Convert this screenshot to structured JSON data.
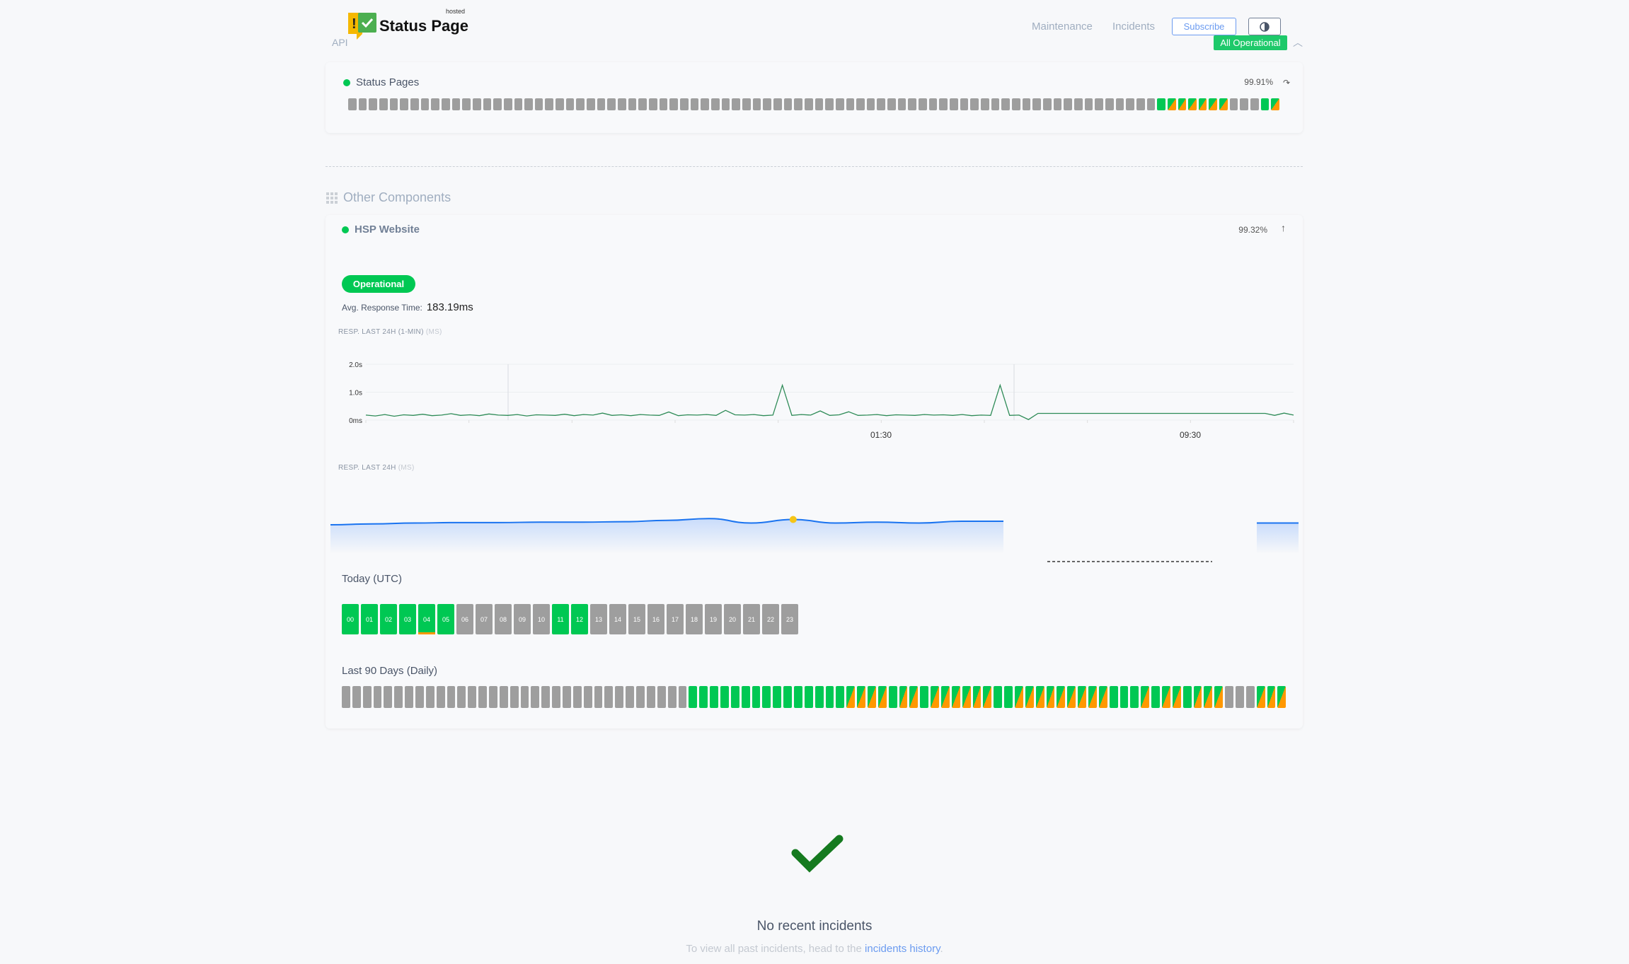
{
  "header": {
    "logo_text": "Status Page",
    "logo_hosted": "hosted",
    "api_label": "API",
    "nav": [
      "Maintenance",
      "Incidents"
    ],
    "subscribe": "Subscribe",
    "theme_icon": "half-circle-contrast-icon",
    "overall_status": "All Operational",
    "collapse_icon": "chevron-up-icon"
  },
  "status_pages": {
    "name": "Status Pages",
    "uptime": "99.91%",
    "icon": "redo-arrow-icon",
    "days": [
      "none",
      "none",
      "none",
      "none",
      "none",
      "none",
      "none",
      "none",
      "none",
      "none",
      "none",
      "none",
      "none",
      "none",
      "none",
      "none",
      "none",
      "none",
      "none",
      "none",
      "none",
      "none",
      "none",
      "none",
      "none",
      "none",
      "none",
      "none",
      "none",
      "none",
      "none",
      "none",
      "none",
      "none",
      "none",
      "none",
      "none",
      "none",
      "none",
      "none",
      "none",
      "none",
      "none",
      "none",
      "none",
      "none",
      "none",
      "none",
      "none",
      "none",
      "none",
      "none",
      "none",
      "none",
      "none",
      "none",
      "none",
      "none",
      "none",
      "none",
      "none",
      "none",
      "none",
      "none",
      "none",
      "none",
      "none",
      "none",
      "none",
      "none",
      "none",
      "none",
      "none",
      "none",
      "none",
      "none",
      "none",
      "none",
      "up",
      "partial",
      "partial",
      "partial",
      "partial",
      "partial",
      "partial",
      "none",
      "none",
      "none",
      "up",
      "partial"
    ]
  },
  "section": {
    "title": "Other Components",
    "icon": "grid-icon"
  },
  "component": {
    "name": "HSP Website",
    "uptime": "99.32%",
    "icon": "arrow-up-icon",
    "status": "Operational",
    "avg_label": "Avg. Response Time:",
    "avg_value": "183.19ms",
    "chart1_label": "RESP. LAST 24H (1-MIN)",
    "chart1_unit": "(MS)",
    "chart2_label": "RESP. LAST 24H",
    "chart2_unit": "(MS)",
    "today_label": "Today (UTC)",
    "hours": [
      {
        "h": "00",
        "s": "up"
      },
      {
        "h": "01",
        "s": "up"
      },
      {
        "h": "02",
        "s": "up"
      },
      {
        "h": "03",
        "s": "up"
      },
      {
        "h": "04",
        "s": "up warn"
      },
      {
        "h": "05",
        "s": "up"
      },
      {
        "h": "06",
        "s": "none"
      },
      {
        "h": "07",
        "s": "none"
      },
      {
        "h": "08",
        "s": "none"
      },
      {
        "h": "09",
        "s": "none"
      },
      {
        "h": "10",
        "s": "none"
      },
      {
        "h": "11",
        "s": "up"
      },
      {
        "h": "12",
        "s": "up"
      },
      {
        "h": "13",
        "s": "none"
      },
      {
        "h": "14",
        "s": "none"
      },
      {
        "h": "15",
        "s": "none"
      },
      {
        "h": "16",
        "s": "none"
      },
      {
        "h": "17",
        "s": "none"
      },
      {
        "h": "18",
        "s": "none"
      },
      {
        "h": "19",
        "s": "none"
      },
      {
        "h": "20",
        "s": "none"
      },
      {
        "h": "21",
        "s": "none"
      },
      {
        "h": "22",
        "s": "none"
      },
      {
        "h": "23",
        "s": "none"
      }
    ],
    "days_label": "Last 90 Days (Daily)",
    "days": [
      "none",
      "none",
      "none",
      "none",
      "none",
      "none",
      "none",
      "none",
      "none",
      "none",
      "none",
      "none",
      "none",
      "none",
      "none",
      "none",
      "none",
      "none",
      "none",
      "none",
      "none",
      "none",
      "none",
      "none",
      "none",
      "none",
      "none",
      "none",
      "none",
      "none",
      "none",
      "none",
      "none",
      "up",
      "up",
      "up",
      "up",
      "up",
      "up",
      "up",
      "up",
      "up",
      "up",
      "up",
      "up",
      "up",
      "up",
      "up",
      "partial",
      "partial",
      "partial",
      "partial",
      "up",
      "partial",
      "partial",
      "up",
      "partial",
      "partial",
      "partial",
      "partial",
      "partial",
      "partial",
      "up",
      "up",
      "partial",
      "partial",
      "partial",
      "partial",
      "partial",
      "partial",
      "partial",
      "partial",
      "partial",
      "up",
      "up",
      "up",
      "partial",
      "up",
      "partial",
      "partial",
      "up",
      "partial",
      "partial",
      "partial",
      "none",
      "none",
      "none",
      "partial",
      "partial",
      "partial"
    ]
  },
  "chart_data": [
    {
      "type": "line",
      "ylim": [
        0,
        2000
      ],
      "yticks": [
        "0ms",
        "1.0s",
        "2.0s"
      ],
      "xticks": [
        "01:30",
        "09:30"
      ],
      "grid": true,
      "color": "#2e8b57",
      "values": [
        180,
        150,
        200,
        140,
        190,
        170,
        210,
        160,
        180,
        230,
        170,
        190,
        160,
        220,
        180,
        170,
        200,
        150,
        190,
        180,
        170,
        210,
        160,
        200,
        180,
        250,
        170,
        190,
        160,
        200,
        180,
        170,
        290,
        160,
        190,
        180,
        200,
        170,
        350,
        190,
        180,
        200,
        160,
        180,
        1250,
        170,
        200,
        180,
        330,
        170,
        190,
        300,
        170,
        180,
        200,
        160,
        190,
        180,
        170,
        200,
        180,
        190,
        170,
        200,
        160,
        180,
        170,
        1250,
        170,
        180,
        20,
        240,
        240,
        240,
        240,
        240,
        240,
        240,
        240,
        240,
        240,
        240,
        240,
        240,
        240,
        240,
        240,
        240,
        240,
        240,
        240,
        240,
        240,
        240,
        240,
        240,
        170,
        250,
        180
      ]
    },
    {
      "type": "area",
      "color": "#1a73f0",
      "values": [
        24,
        25,
        26,
        26.5,
        26.5,
        27,
        27,
        27.5,
        29,
        31,
        26,
        30,
        26,
        27,
        26,
        28,
        28
      ],
      "highlight_index": 11,
      "gap_values": [
        26
      ]
    }
  ],
  "incidents": {
    "title": "No recent incidents",
    "text": "To view all past incidents, head to the",
    "link": "incidents history",
    "suffix": "."
  }
}
